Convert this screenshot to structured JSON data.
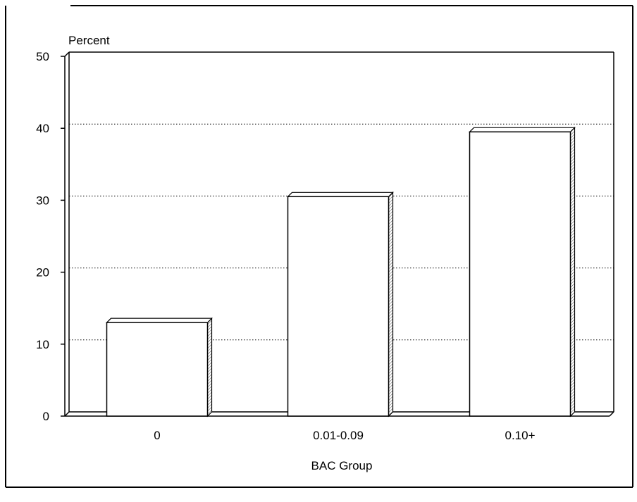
{
  "chart_data": {
    "type": "bar",
    "title": "",
    "xlabel": "BAC Group",
    "ylabel": "Percent",
    "categories": [
      "0",
      "0.01-0.09",
      "0.10+"
    ],
    "values": [
      13,
      30.5,
      39.5
    ],
    "ylim": [
      0,
      50
    ],
    "yticks": [
      0,
      10,
      20,
      30,
      40,
      50
    ],
    "grid": "dotted horizontal",
    "legend": "none",
    "bar_color": "#ffffff",
    "edge_color": "#000000"
  }
}
